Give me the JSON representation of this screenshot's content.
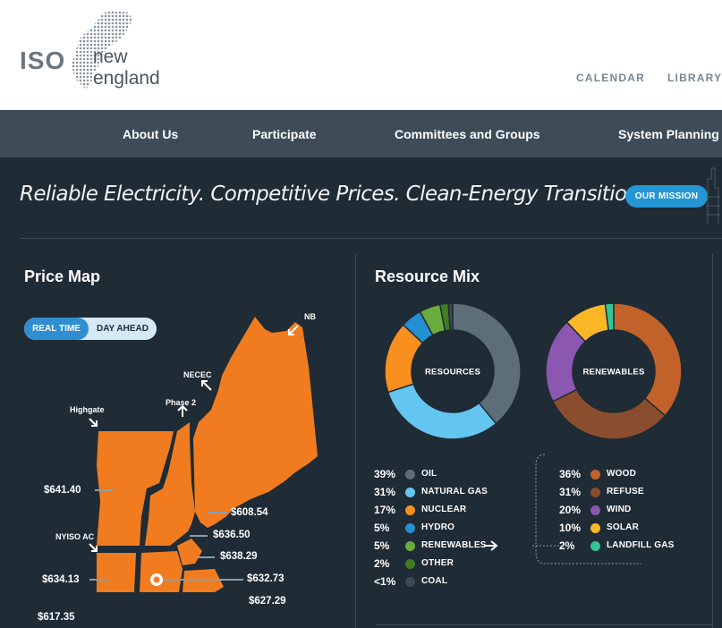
{
  "logo": {
    "mark": "ISO",
    "text": "new england"
  },
  "util_nav": [
    "CALENDAR",
    "LIBRARY"
  ],
  "nav": [
    "About Us",
    "Participate",
    "Committees and Groups",
    "System Planning"
  ],
  "tagline": "Reliable Electricity. Competitive Prices. Clean-Energy Transition.",
  "mission_button": "OUR MISSION",
  "price_map": {
    "title": "Price Map",
    "toggle": {
      "active": "REAL TIME",
      "inactive": "DAY AHEAD"
    },
    "interfaces": [
      "NB",
      "NECEC",
      "Phase 2",
      "Highgate",
      "NYISO AC"
    ],
    "prices": [
      "$641.40",
      "$608.54",
      "$636.50",
      "$638.29",
      "$634.13",
      "$632.73",
      "$627.29",
      "$617.35"
    ],
    "map_color": "#f07c1f"
  },
  "resource_mix": {
    "title": "Resource Mix",
    "donut_resources_label": "RESOURCES",
    "donut_renewables_label": "RENEWABLES",
    "resources": [
      {
        "pct": "39%",
        "name": "OIL",
        "value": 39,
        "color": "#5e6e78"
      },
      {
        "pct": "31%",
        "name": "NATURAL GAS",
        "value": 31,
        "color": "#63c6f1"
      },
      {
        "pct": "17%",
        "name": "NUCLEAR",
        "value": 17,
        "color": "#f7901e"
      },
      {
        "pct": "5%",
        "name": "HYDRO",
        "value": 5,
        "color": "#2390d2"
      },
      {
        "pct": "5%",
        "name": "RENEWABLES",
        "value": 5,
        "color": "#6aab3e"
      },
      {
        "pct": "2%",
        "name": "OTHER",
        "value": 2,
        "color": "#3f7d23"
      },
      {
        "pct": "<1%",
        "name": "COAL",
        "value": 1,
        "color": "#3e4a52"
      }
    ],
    "renewables": [
      {
        "pct": "36%",
        "name": "WOOD",
        "value": 36,
        "color": "#c0622a"
      },
      {
        "pct": "31%",
        "name": "REFUSE",
        "value": 31,
        "color": "#8a4e2e"
      },
      {
        "pct": "20%",
        "name": "WIND",
        "value": 20,
        "color": "#8b57b0"
      },
      {
        "pct": "10%",
        "name": "SOLAR",
        "value": 10,
        "color": "#fbb726"
      },
      {
        "pct": "2%",
        "name": "LANDFILL GAS",
        "value": 2,
        "color": "#34c495"
      }
    ]
  }
}
